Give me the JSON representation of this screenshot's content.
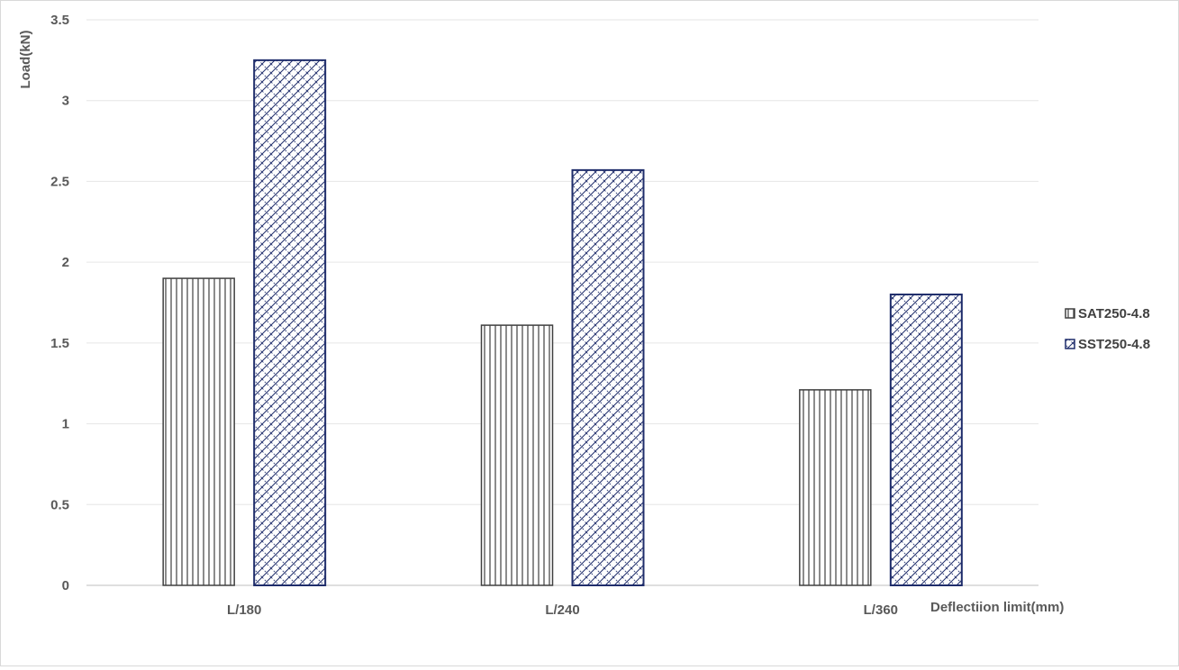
{
  "chart_data": {
    "type": "bar",
    "title": "",
    "xlabel": "Deflectiion limit(mm)",
    "ylabel": "Load(kN)",
    "categories": [
      "L/180",
      "L/240",
      "L/360"
    ],
    "series": [
      {
        "name": "SAT250-4.8",
        "values": [
          1.9,
          1.61,
          1.21
        ],
        "color": "#404040",
        "pattern": "vertical-lines"
      },
      {
        "name": "SST250-4.8",
        "values": [
          3.25,
          2.57,
          1.8
        ],
        "color": "#1f2d6b",
        "pattern": "diagonal-cross"
      }
    ],
    "ylim": [
      0,
      3.5
    ],
    "yticks": [
      "0",
      "0.5",
      "1",
      "1.5",
      "2",
      "2.5",
      "3",
      "3.5"
    ],
    "grid": true,
    "legend_position": "right"
  }
}
